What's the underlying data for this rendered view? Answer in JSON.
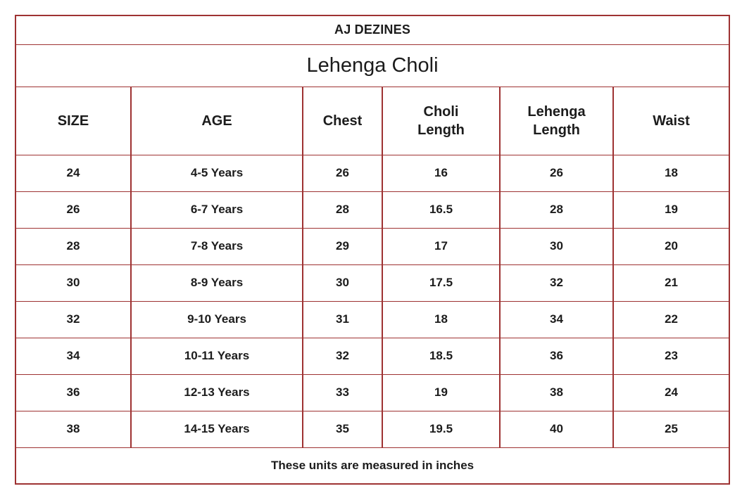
{
  "brand": "AJ DEZINES",
  "product": "Lehenga Choli",
  "note": "These units are measured in inches",
  "colors": {
    "border": "#9e3232",
    "text": "#1c1c1c",
    "background": "#ffffff"
  },
  "chart_data": {
    "type": "table",
    "title": "AJ DEZINES",
    "subtitle": "Lehenga Choli",
    "units": "inches",
    "headers": [
      "SIZE",
      "AGE",
      "Chest",
      "Choli\nLength",
      "Lehenga\nLength",
      "Waist"
    ],
    "rows": [
      [
        "24",
        "4-5 Years",
        "26",
        "16",
        "26",
        "18"
      ],
      [
        "26",
        "6-7 Years",
        "28",
        "16.5",
        "28",
        "19"
      ],
      [
        "28",
        "7-8 Years",
        "29",
        "17",
        "30",
        "20"
      ],
      [
        "30",
        "8-9 Years",
        "30",
        "17.5",
        "32",
        "21"
      ],
      [
        "32",
        "9-10 Years",
        "31",
        "18",
        "34",
        "22"
      ],
      [
        "34",
        "10-11 Years",
        "32",
        "18.5",
        "36",
        "23"
      ],
      [
        "36",
        "12-13 Years",
        "33",
        "19",
        "38",
        "24"
      ],
      [
        "38",
        "14-15 Years",
        "35",
        "19.5",
        "40",
        "25"
      ]
    ],
    "footnote": "These units are measured in inches"
  }
}
